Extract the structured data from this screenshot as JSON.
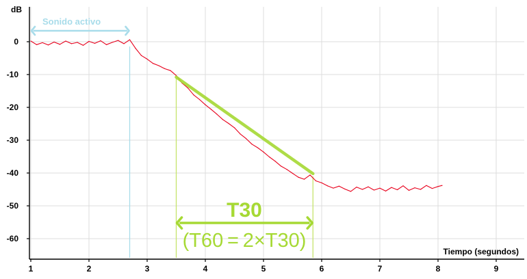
{
  "chart_data": {
    "type": "line",
    "title": "",
    "ylabel": "dB",
    "xlabel": "Tiempo (segundos)",
    "xlim": [
      1,
      9.5
    ],
    "ylim": [
      -66,
      10
    ],
    "x_ticks": [
      1,
      2,
      3,
      4,
      5,
      6,
      7,
      8,
      9
    ],
    "y_ticks": [
      0,
      -10,
      -20,
      -30,
      -40,
      -50,
      -60
    ],
    "grid": true,
    "series": [
      {
        "color": "#e8001c",
        "x": [
          1.0,
          1.1,
          1.2,
          1.3,
          1.4,
          1.5,
          1.6,
          1.7,
          1.8,
          1.9,
          2.0,
          2.1,
          2.2,
          2.3,
          2.4,
          2.5,
          2.6,
          2.7,
          2.8,
          2.9,
          3.0,
          3.1,
          3.2,
          3.3,
          3.4,
          3.5,
          3.6,
          3.7,
          3.8,
          3.9,
          4.0,
          4.1,
          4.2,
          4.3,
          4.4,
          4.5,
          4.6,
          4.7,
          4.8,
          4.9,
          5.0,
          5.1,
          5.2,
          5.3,
          5.4,
          5.5,
          5.6,
          5.7,
          5.8,
          5.9,
          6.0,
          6.1,
          6.2,
          6.3,
          6.4,
          6.5,
          6.6,
          6.7,
          6.8,
          6.9,
          7.0,
          7.1,
          7.2,
          7.3,
          7.4,
          7.5,
          7.6,
          7.7,
          7.8,
          7.9,
          8.0,
          8.07
        ],
        "y": [
          0.2,
          -0.9,
          -0.3,
          -1.0,
          -0.1,
          -0.8,
          0.2,
          -0.6,
          -0.2,
          -1.1,
          0.1,
          -0.5,
          0.3,
          -0.9,
          -0.2,
          0.4,
          -0.6,
          0.6,
          -2.0,
          -4.2,
          -5.3,
          -6.6,
          -7.3,
          -8.2,
          -8.8,
          -10.3,
          -12.6,
          -14.1,
          -16.2,
          -17.6,
          -19.2,
          -20.6,
          -22.1,
          -23.7,
          -24.9,
          -26.2,
          -28.1,
          -29.5,
          -31.2,
          -32.3,
          -33.6,
          -35.1,
          -36.4,
          -37.9,
          -38.9,
          -40.1,
          -41.3,
          -41.9,
          -40.6,
          -42.4,
          -43.0,
          -43.9,
          -44.6,
          -44.0,
          -44.9,
          -45.6,
          -44.3,
          -45.0,
          -44.2,
          -45.2,
          -44.6,
          -45.5,
          -44.4,
          -45.1,
          -43.9,
          -45.3,
          -44.5,
          -45.0,
          -43.8,
          -44.7,
          -44.1,
          -43.8
        ]
      }
    ],
    "fit_line": {
      "color": "#a6d934",
      "x": [
        3.5,
        5.85
      ],
      "y": [
        -10.8,
        -40.2
      ]
    },
    "markers": [
      {
        "x": 2.7,
        "color": "#a8dcea"
      },
      {
        "x": 3.5,
        "color": "#c6e46c"
      },
      {
        "x": 5.85,
        "color": "#c6e46c"
      }
    ],
    "annotations": {
      "active_sound": {
        "label": "Sonido activo",
        "x_from": 1.0,
        "x_to": 2.7,
        "color": "#a8dcea"
      },
      "t30": {
        "label": "T30",
        "sublabel": "(T60 = 2×T30)",
        "x_from": 3.5,
        "x_to": 5.85,
        "color": "#a6d934"
      }
    }
  }
}
